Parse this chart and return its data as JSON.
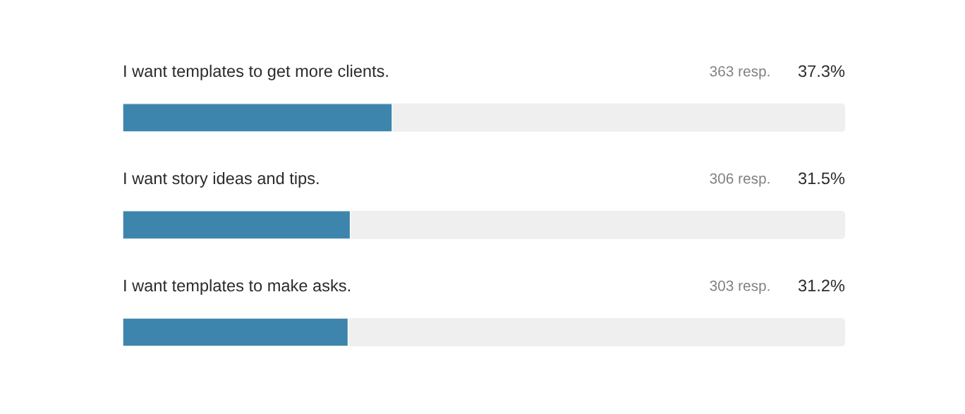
{
  "chart_data": {
    "type": "bar",
    "orientation": "horizontal",
    "categories": [
      "I want templates to get more clients.",
      "I want story ideas and tips.",
      "I want templates to make asks."
    ],
    "values": [
      37.3,
      31.5,
      31.2
    ],
    "value_labels": [
      "37.3%",
      "31.5%",
      "31.2%"
    ],
    "color": "#3d85ac",
    "xlim": [
      0,
      100
    ],
    "annotations": [
      "363 resp.",
      "306 resp.",
      "303 resp."
    ]
  }
}
